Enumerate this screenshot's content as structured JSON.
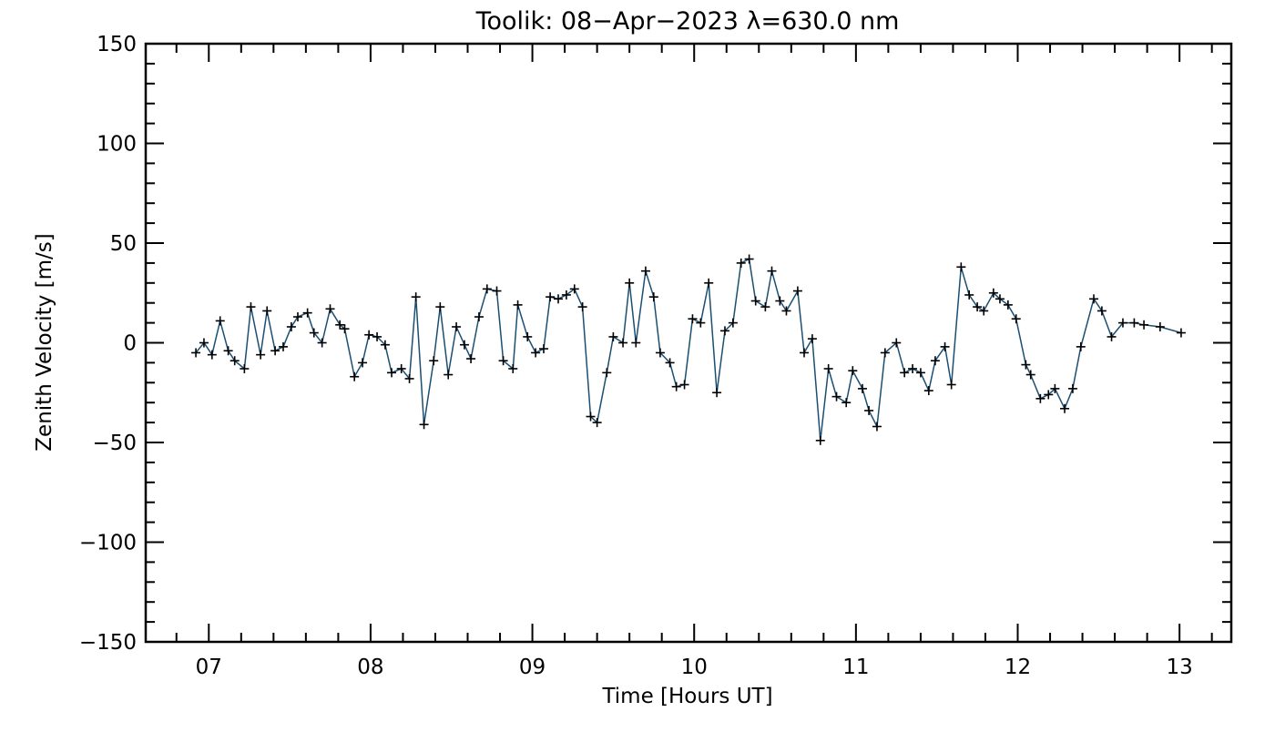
{
  "chart_data": {
    "type": "line",
    "title": "Toolik: 08−Apr−2023 λ=630.0 nm",
    "xlabel": "Time [Hours UT]",
    "ylabel": "Zenith Velocity [m/s]",
    "xlim": [
      6.61,
      13.32
    ],
    "ylim": [
      -150,
      150
    ],
    "xticks": [
      7,
      8,
      9,
      10,
      11,
      12,
      13
    ],
    "xtick_labels": [
      "07",
      "08",
      "09",
      "10",
      "11",
      "12",
      "13"
    ],
    "yticks": [
      -150,
      -100,
      -50,
      0,
      50,
      100,
      150
    ],
    "ytick_labels": [
      "−150",
      "−100",
      "−50",
      "0",
      "50",
      "100",
      "150"
    ],
    "grid": false,
    "line_color": "#1b4f72",
    "marker_color": "#000000",
    "marker": "plus",
    "series": [
      {
        "name": "Zenith Velocity",
        "x": [
          6.92,
          6.97,
          7.02,
          7.07,
          7.12,
          7.16,
          7.22,
          7.26,
          7.32,
          7.36,
          7.41,
          7.46,
          7.51,
          7.55,
          7.61,
          7.65,
          7.7,
          7.75,
          7.81,
          7.84,
          7.9,
          7.95,
          7.99,
          8.04,
          8.09,
          8.13,
          8.19,
          8.24,
          8.28,
          8.33,
          8.39,
          8.43,
          8.48,
          8.53,
          8.58,
          8.62,
          8.67,
          8.72,
          8.78,
          8.82,
          8.88,
          8.91,
          8.97,
          9.02,
          9.07,
          9.11,
          9.16,
          9.21,
          9.26,
          9.31,
          9.36,
          9.4,
          9.46,
          9.5,
          9.56,
          9.6,
          9.64,
          9.7,
          9.75,
          9.79,
          9.85,
          9.89,
          9.94,
          9.99,
          10.04,
          10.09,
          10.14,
          10.19,
          10.24,
          10.29,
          10.34,
          10.38,
          10.44,
          10.48,
          10.53,
          10.57,
          10.64,
          10.68,
          10.73,
          10.78,
          10.83,
          10.88,
          10.94,
          10.98,
          11.04,
          11.08,
          11.13,
          11.18,
          11.25,
          11.3,
          11.35,
          11.4,
          11.45,
          11.49,
          11.55,
          11.59,
          11.65,
          11.7,
          11.75,
          11.79,
          11.85,
          11.89,
          11.94,
          11.99,
          12.05,
          12.08,
          12.14,
          12.19,
          12.23,
          12.29,
          12.34,
          12.39,
          12.47,
          12.52,
          12.58,
          12.65,
          12.72,
          12.78,
          12.88,
          13.01
        ],
        "y": [
          -5,
          0,
          -6,
          11,
          -4,
          -9,
          -13,
          18,
          -6,
          16,
          -4,
          -2,
          8,
          13,
          15,
          5,
          0,
          17,
          9,
          7,
          -17,
          -10,
          4,
          3,
          -1,
          -15,
          -13,
          -18,
          23,
          -41,
          -9,
          18,
          -16,
          8,
          -1,
          -8,
          13,
          27,
          26,
          -9,
          -13,
          19,
          3,
          -5,
          -3,
          23,
          22,
          24,
          27,
          18,
          -37,
          -40,
          -15,
          3,
          0,
          30,
          0,
          36,
          23,
          -5,
          -10,
          -22,
          -21,
          12,
          10,
          30,
          -25,
          6,
          10,
          40,
          42,
          21,
          18,
          36,
          21,
          16,
          26,
          -5,
          2,
          -49,
          -13,
          -27,
          -30,
          -14,
          -23,
          -34,
          -42,
          -5,
          0,
          -15,
          -13,
          -15,
          -24,
          -9,
          -2,
          -21,
          38,
          24,
          18,
          16,
          25,
          22,
          19,
          12,
          -11,
          -16,
          -28,
          -26,
          -23,
          -33,
          -23,
          -2,
          22,
          16,
          3,
          10,
          10,
          9,
          8,
          5
        ]
      }
    ]
  }
}
